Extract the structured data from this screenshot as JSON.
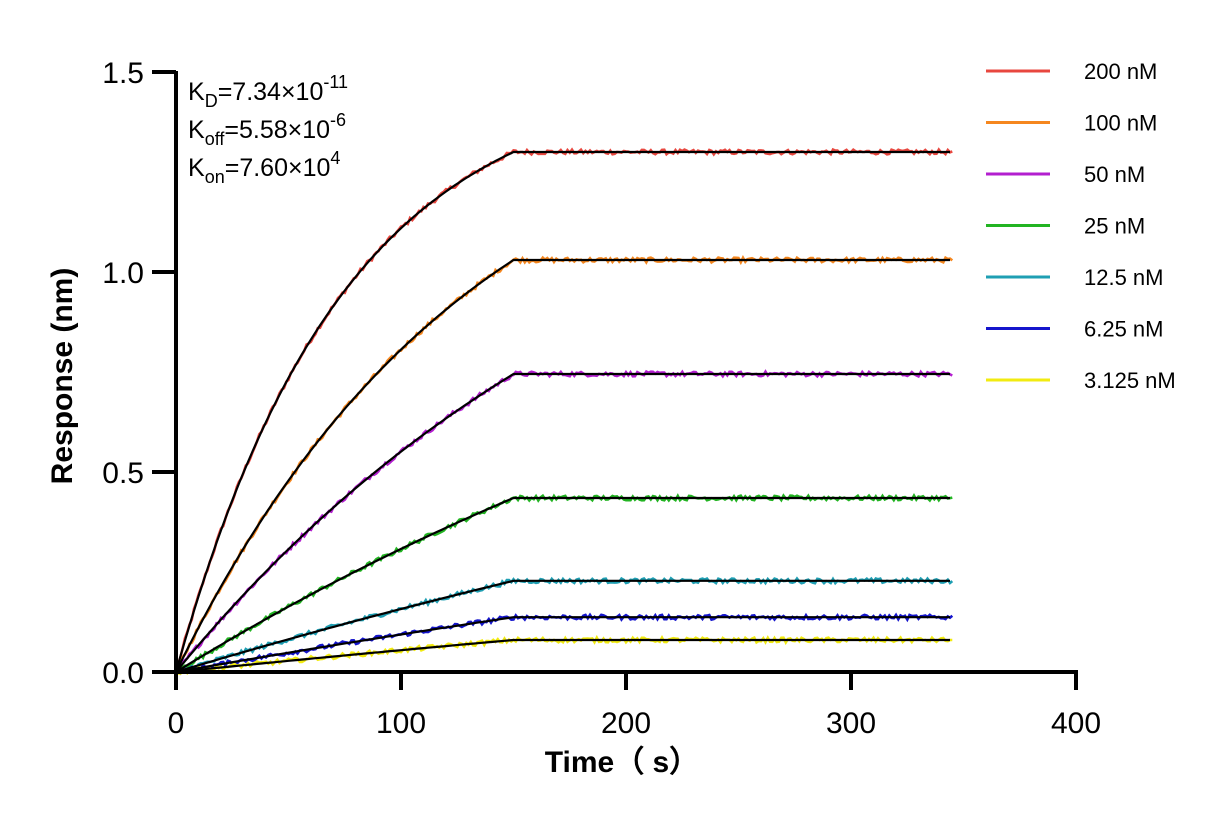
{
  "chart_data": {
    "type": "line",
    "title": "",
    "xlabel": "Time（ s）",
    "ylabel": "Response (nm)",
    "xlim": [
      0,
      400
    ],
    "ylim": [
      0,
      1.5
    ],
    "x_ticks": [
      "0",
      "100",
      "200",
      "300",
      "400"
    ],
    "y_ticks": [
      "0.0",
      "0.5",
      "1.0",
      "1.5"
    ],
    "grid": false,
    "legend_position": "right",
    "association_end": 150,
    "dissociation_end": 345,
    "fit_color": "#000000",
    "kinetics": [
      {
        "base": "K",
        "sub": "D",
        "value": "=7.34×10",
        "exp": "-11"
      },
      {
        "base": "K",
        "sub": "off",
        "value": "=5.58×10",
        "exp": "-6"
      },
      {
        "base": "K",
        "sub": "on",
        "value": "=7.60×10",
        "exp": "4"
      }
    ],
    "series": [
      {
        "name": "200 nM",
        "color": "#E8473F",
        "plateau": 1.3,
        "k": 0.0135
      },
      {
        "name": "100 nM",
        "color": "#F5871F",
        "plateau": 1.03,
        "k": 0.0076
      },
      {
        "name": "50 nM",
        "color": "#B31FCF",
        "plateau": 0.745,
        "k": 0.0046
      },
      {
        "name": "25 nM",
        "color": "#22B422",
        "plateau": 0.435,
        "k": 0.0025
      },
      {
        "name": "12.5 nM",
        "color": "#1F9FB3",
        "plateau": 0.228,
        "k": 0.0015
      },
      {
        "name": "6.25 nM",
        "color": "#1515CC",
        "plateau": 0.137,
        "k": 0.0011
      },
      {
        "name": "3.125 nM",
        "color": "#F2EB10",
        "plateau": 0.08,
        "k": 0.0009
      }
    ]
  }
}
